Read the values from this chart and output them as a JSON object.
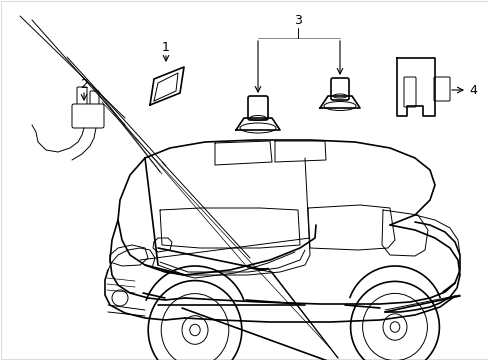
{
  "background_color": "#ffffff",
  "line_color": "#000000",
  "line_color_gray": "#888888",
  "lw_main": 1.2,
  "lw_thin": 0.7,
  "lw_label": 0.8,
  "label_fontsize": 9,
  "figsize": [
    4.89,
    3.6
  ],
  "dpi": 100,
  "border_color": "#cccccc"
}
